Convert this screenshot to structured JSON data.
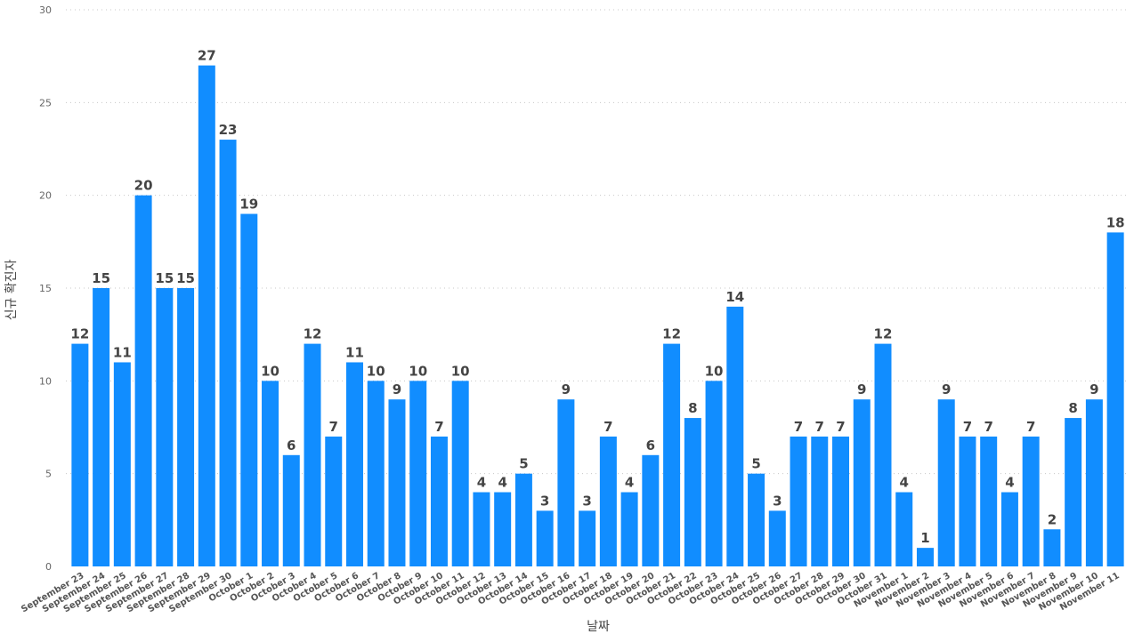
{
  "chart_data": {
    "type": "bar",
    "title": "",
    "xlabel": "날짜",
    "ylabel": "신규 확진자",
    "ylim": [
      0,
      30
    ],
    "yticks": [
      0,
      5,
      10,
      15,
      20,
      25,
      30
    ],
    "grid": true,
    "bar_color": "#118dff",
    "categories": [
      "September 23",
      "September 24",
      "September 25",
      "September 26",
      "September 27",
      "September 28",
      "September 29",
      "September 30",
      "October 1",
      "October 2",
      "October 3",
      "October 4",
      "October 5",
      "October 6",
      "October 7",
      "October 8",
      "October 9",
      "October 10",
      "October 11",
      "October 12",
      "October 13",
      "October 14",
      "October 15",
      "October 16",
      "October 17",
      "October 18",
      "October 19",
      "October 20",
      "October 21",
      "October 22",
      "October 23",
      "October 24",
      "October 25",
      "October 26",
      "October 27",
      "October 28",
      "October 29",
      "October 30",
      "October 31",
      "November 1",
      "November 2",
      "November 3",
      "November 4",
      "November 5",
      "November 6",
      "November 7",
      "November 8",
      "November 9",
      "November 10",
      "November 11"
    ],
    "values": [
      12,
      15,
      11,
      20,
      15,
      15,
      27,
      23,
      19,
      10,
      6,
      12,
      7,
      11,
      10,
      9,
      10,
      7,
      10,
      4,
      4,
      5,
      3,
      9,
      3,
      7,
      4,
      6,
      12,
      8,
      10,
      14,
      5,
      3,
      7,
      7,
      7,
      9,
      12,
      4,
      1,
      9,
      7,
      7,
      4,
      7,
      2,
      8,
      9,
      18
    ]
  }
}
